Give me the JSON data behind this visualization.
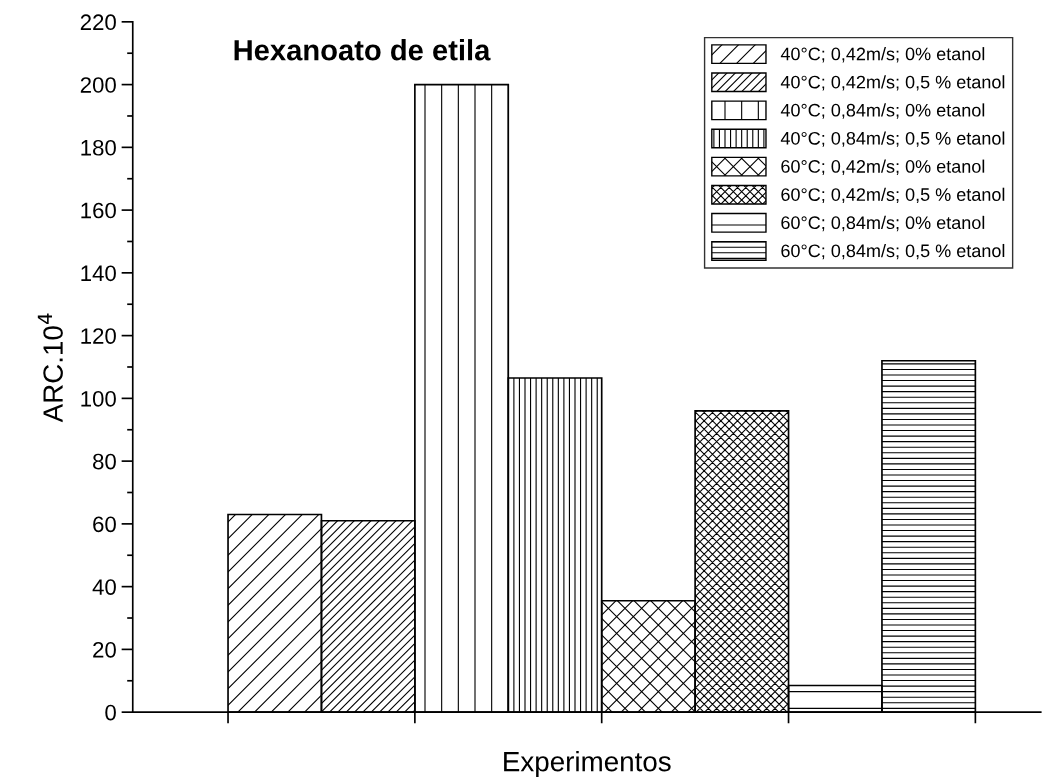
{
  "chart_data": {
    "type": "bar",
    "title": "Hexanoato de etila",
    "xlabel": "Experimentos",
    "ylabel": "ARC.10$^{4}$",
    "categories": [
      null,
      null,
      null,
      null,
      null,
      null,
      null,
      null
    ],
    "series": [
      {
        "name": "40°C; 0,42m/s; 0% etanol",
        "color": "#000000",
        "values": [
          63,
          null,
          null,
          null,
          null,
          null,
          null,
          null
        ]
      },
      {
        "name": "40°C; 0,42m/s; 0,5 % etanol",
        "color": "#000000",
        "values": [
          null,
          61,
          null,
          null,
          null,
          null,
          null,
          null
        ]
      },
      {
        "name": "40°C; 0,84m/s; 0% etanol",
        "color": "#000000",
        "values": [
          null,
          null,
          200,
          null,
          null,
          null,
          null,
          null
        ]
      },
      {
        "name": "40°C; 0,84m/s; 0,5 % etanol",
        "color": "#000000",
        "values": [
          null,
          null,
          null,
          106.5,
          null,
          null,
          null,
          null
        ]
      },
      {
        "name": "60°C; 0,42m/s; 0% etanol",
        "color": "#000000",
        "values": [
          null,
          null,
          null,
          null,
          35.5,
          null,
          null,
          null
        ]
      },
      {
        "name": "60°C; 0,42m/s; 0,5 % etanol",
        "color": "#000000",
        "values": [
          null,
          null,
          null,
          null,
          null,
          96,
          null,
          null
        ]
      },
      {
        "name": "60°C; 0,84m/s; 0% etanol",
        "color": "#000000",
        "values": [
          null,
          null,
          null,
          null,
          null,
          null,
          8.5,
          null
        ]
      },
      {
        "name": "60°C; 0,84m/s; 0,5 % etanol",
        "color": "#000000",
        "values": [
          null,
          null,
          null,
          null,
          null,
          null,
          null,
          112
        ]
      }
    ],
    "ylim": [
      0,
      220
    ],
    "yticks": [
      0,
      20,
      40,
      60,
      80,
      100,
      120,
      140,
      160,
      180,
      200,
      220
    ],
    "stacked": true,
    "grid": false,
    "legend": "top right",
    "tick_labels": "y"
  }
}
